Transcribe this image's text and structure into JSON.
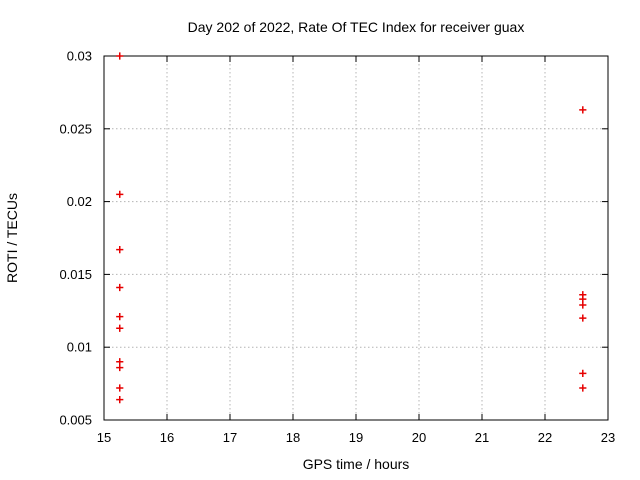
{
  "chart_data": {
    "type": "scatter",
    "title": "Day 202 of 2022, Rate Of TEC Index for receiver guax",
    "xlabel": "GPS time / hours",
    "ylabel": "ROTI / TECUs",
    "xlim": [
      15,
      23
    ],
    "ylim": [
      0.005,
      0.03
    ],
    "grid": "dotted, on major ticks",
    "legend": "none",
    "x_ticks": [
      {
        "v": 15,
        "label": "15"
      },
      {
        "v": 16,
        "label": "16"
      },
      {
        "v": 17,
        "label": "17"
      },
      {
        "v": 18,
        "label": "18"
      },
      {
        "v": 19,
        "label": "19"
      },
      {
        "v": 20,
        "label": "20"
      },
      {
        "v": 21,
        "label": "21"
      },
      {
        "v": 22,
        "label": "22"
      },
      {
        "v": 23,
        "label": "23"
      }
    ],
    "y_ticks": [
      {
        "v": 0.005,
        "label": "0.005"
      },
      {
        "v": 0.01,
        "label": "0.01"
      },
      {
        "v": 0.015,
        "label": "0.015"
      },
      {
        "v": 0.02,
        "label": "0.02"
      },
      {
        "v": 0.025,
        "label": "0.025"
      },
      {
        "v": 0.03,
        "label": "0.03"
      }
    ],
    "series": [
      {
        "name": "guax ROTI",
        "marker": "plus",
        "color": "#e60000",
        "points": [
          [
            15.25,
            0.03
          ],
          [
            15.25,
            0.0205
          ],
          [
            15.25,
            0.0167
          ],
          [
            15.25,
            0.0141
          ],
          [
            15.25,
            0.0121
          ],
          [
            15.25,
            0.0113
          ],
          [
            15.25,
            0.009
          ],
          [
            15.25,
            0.0086
          ],
          [
            15.25,
            0.0072
          ],
          [
            15.25,
            0.0064
          ],
          [
            22.6,
            0.0263
          ],
          [
            22.6,
            0.0136
          ],
          [
            22.6,
            0.0133
          ],
          [
            22.6,
            0.0129
          ],
          [
            22.6,
            0.012
          ],
          [
            22.6,
            0.0082
          ],
          [
            22.6,
            0.0072
          ]
        ]
      }
    ],
    "colors": {
      "axis": "#000000",
      "grid": "#b4b4b4",
      "marker": "#e60000",
      "background": "#ffffff"
    }
  }
}
